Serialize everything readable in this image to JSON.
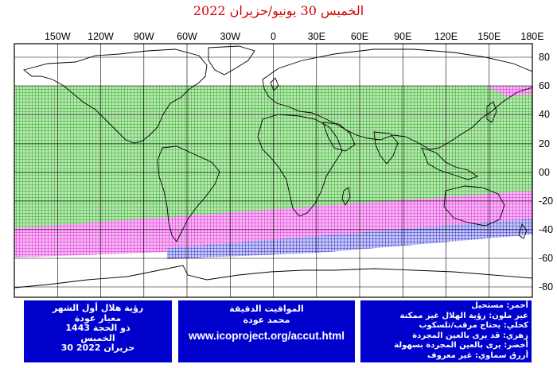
{
  "title": "الخميس 30 يونيو/حزيران 2022",
  "map": {
    "lon_labels": [
      "150W",
      "120W",
      "90W",
      "60W",
      "30W",
      "0",
      "30E",
      "60E",
      "90E",
      "120E",
      "150E",
      "180E"
    ],
    "lat_labels": [
      "80",
      "60",
      "40",
      "20",
      "00",
      "-20",
      "-40",
      "-60",
      "-80"
    ],
    "colors": {
      "green": "#009a00",
      "magenta": "#e000e0",
      "blue": "#0000cc",
      "red": "#d40000"
    }
  },
  "info_left": {
    "line1": "رؤية هلال أول الشهر",
    "line2": "معيار عودة",
    "line3": "ذو الحجة 1443",
    "line4": "الخميس",
    "line5": "30 حزيران 2022"
  },
  "info_mid": {
    "line1": "المواقيت الدقيقة",
    "line2": "محمد عودة",
    "url": "www.icoproject.org/accut.html"
  },
  "legend": [
    "أحمر: مستحيل",
    "غير ملون: رؤية الهلال غير ممكنة",
    "كحلي: يحتاج مرقب/تلسكوب",
    "زهري: قد يرى بالعين المجردة",
    "أخضر: يرى بالعين المجردة بسهولة",
    "أزرق سماوي: غير معروف"
  ]
}
